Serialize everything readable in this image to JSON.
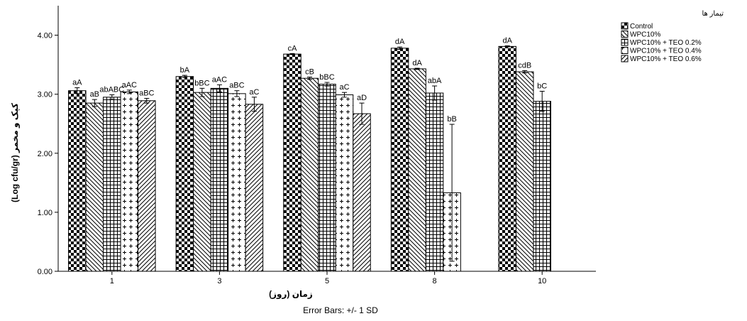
{
  "chart_data": {
    "type": "bar",
    "ylabel": "(Log cfu/gr) کپک و مخمر",
    "xlabel": "زمان (روز)",
    "footer": "Error Bars: +/- 1 SD",
    "ylim": [
      0,
      4.5
    ],
    "yticks": [
      "0.00",
      "1.00",
      "2.00",
      "3.00",
      "4.00"
    ],
    "categories": [
      "1",
      "3",
      "5",
      "8",
      "10"
    ],
    "legend_title": "تیمار ها",
    "legend_position": "top-right",
    "series": [
      {
        "name": "Control",
        "pattern": "checker",
        "values": [
          3.06,
          3.3,
          3.68,
          3.78,
          3.81
        ],
        "errors": [
          0.05,
          0.02,
          0.01,
          0.02,
          0.01
        ],
        "labels": [
          "aA",
          "bA",
          "cA",
          "dA",
          "dA"
        ]
      },
      {
        "name": "WPC10%",
        "pattern": "hatch-back",
        "values": [
          2.85,
          3.03,
          3.27,
          3.43,
          3.38
        ],
        "errors": [
          0.06,
          0.07,
          0.02,
          0.01,
          0.02
        ],
        "labels": [
          "aB",
          "bBC",
          "cB",
          "dA",
          "cdB"
        ]
      },
      {
        "name": "WPC10% + TEO 0.2%",
        "pattern": "grid",
        "values": [
          2.95,
          3.1,
          3.17,
          3.02,
          2.88
        ],
        "errors": [
          0.04,
          0.06,
          0.03,
          0.12,
          0.17
        ],
        "labels": [
          "abABC",
          "aAC",
          "bBC",
          "abA",
          "bC"
        ]
      },
      {
        "name": "WPC10% + TEO 0.4%",
        "pattern": "plus",
        "values": [
          3.04,
          3.01,
          2.99,
          1.33,
          null
        ],
        "errors": [
          0.03,
          0.05,
          0.04,
          1.16,
          null
        ],
        "labels": [
          "aAC",
          "aBC",
          "aC",
          "bB",
          ""
        ]
      },
      {
        "name": "WPC10% + TEO 0.6%",
        "pattern": "hatch-forward",
        "values": [
          2.89,
          2.83,
          2.67,
          null,
          null
        ],
        "errors": [
          0.04,
          0.12,
          0.18,
          null,
          null
        ],
        "labels": [
          "aBC",
          "aC",
          "aD",
          "",
          ""
        ]
      }
    ]
  }
}
